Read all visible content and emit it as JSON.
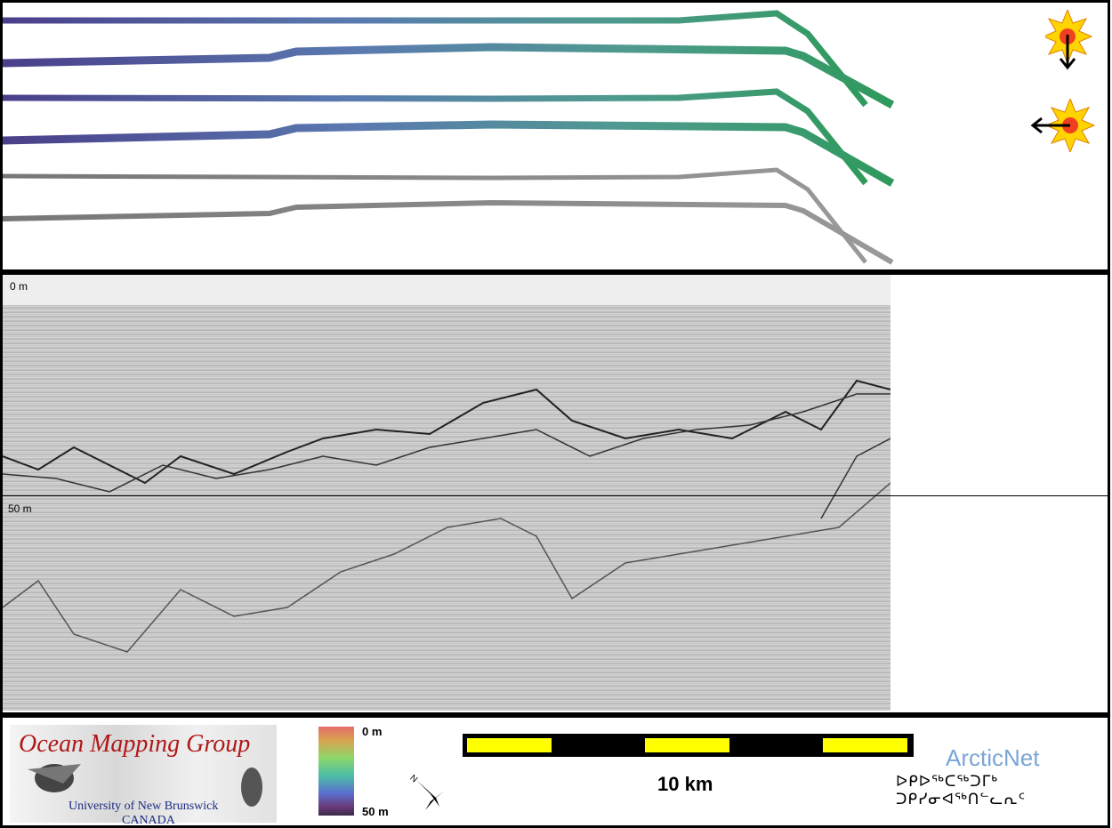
{
  "profile": {
    "depth_top_label": "0 m",
    "depth_mid_label": "50 m"
  },
  "footer": {
    "logo_title": "Ocean Mapping Group",
    "logo_university": "University of New Brunswick",
    "logo_country": "CANADA",
    "colorbar_top": "0 m",
    "colorbar_bottom": "50 m",
    "scale_label": "10 km",
    "partner_name": "ArcticNet",
    "partner_syllabics": "ᐅᑭᐅᖅᑕᖅᑐᒥᒃ ᑐᑭᓯᓂᐊᖅᑎᓪᓚᕆᑦ",
    "north_arrow": "north-arrow-icon"
  },
  "colors": {
    "scale_fill": "#ffff00",
    "track_start": "#4a3f8a",
    "track_end": "#2f9a5c",
    "logo_title": "#b01818",
    "partner": "#7aa6d6"
  }
}
